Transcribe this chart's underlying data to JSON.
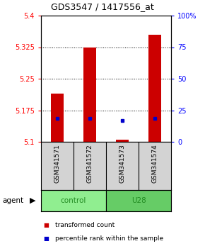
{
  "title": "GDS3547 / 1417556_at",
  "samples": [
    "GSM341571",
    "GSM341572",
    "GSM341573",
    "GSM341574"
  ],
  "groups": [
    "control",
    "control",
    "U28",
    "U28"
  ],
  "group_labels": [
    "control",
    "U28"
  ],
  "bar_bottom": 5.1,
  "bar_tops": [
    5.215,
    5.325,
    5.105,
    5.355
  ],
  "percentile_values": [
    5.155,
    5.155,
    5.15,
    5.155
  ],
  "ylim_left": [
    5.1,
    5.4
  ],
  "ylim_right": [
    0,
    100
  ],
  "yticks_left": [
    5.1,
    5.175,
    5.25,
    5.325,
    5.4
  ],
  "yticks_right": [
    0,
    25,
    50,
    75,
    100
  ],
  "ytick_labels_right": [
    "0",
    "25",
    "50",
    "75",
    "100%"
  ],
  "bar_color": "#CC0000",
  "percentile_color": "#0000CC",
  "sample_area_color": "#d3d3d3",
  "control_color": "#90EE90",
  "u28_color": "#66CC66",
  "group_text_color": "#228B22",
  "agent_label": "agent",
  "legend_items": [
    "transformed count",
    "percentile rank within the sample"
  ]
}
